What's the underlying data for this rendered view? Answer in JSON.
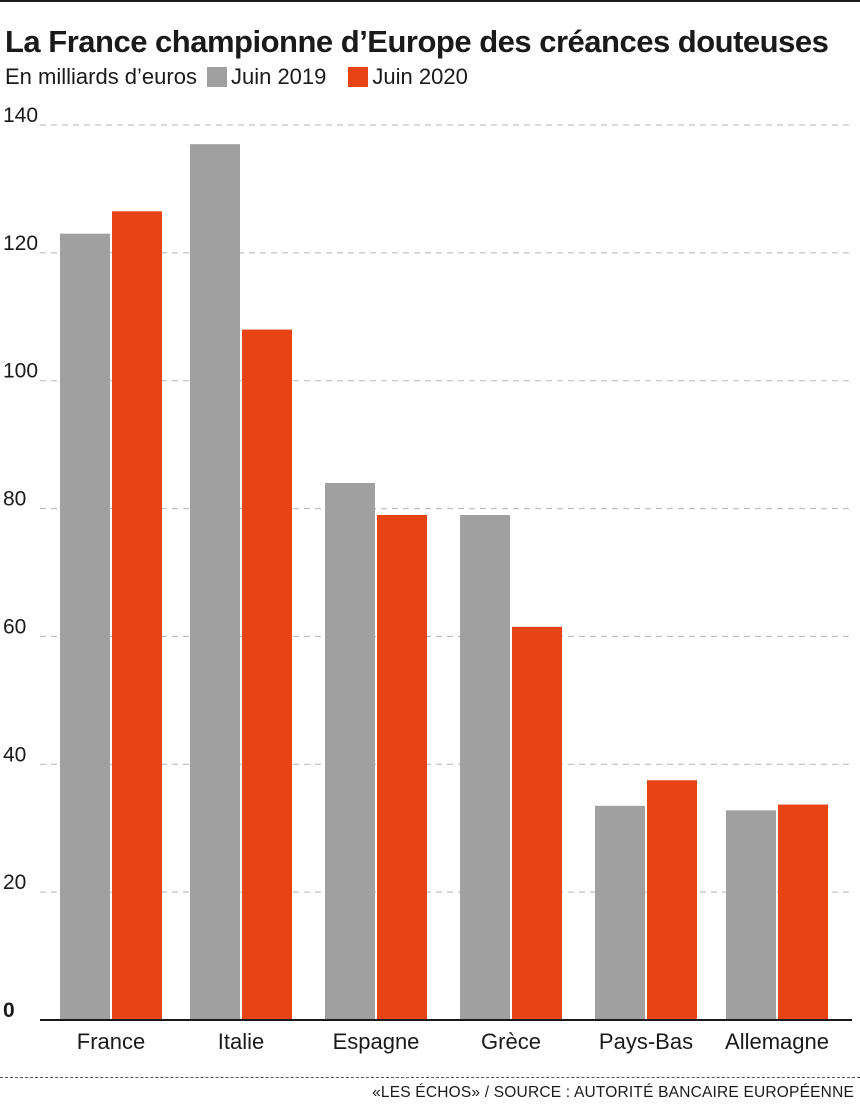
{
  "header": {
    "title": "La France championne d’Europe des créances douteuses",
    "subtitle": "En milliards d’euros"
  },
  "legend": [
    {
      "label": "Juin 2019",
      "color": "#a0a0a0"
    },
    {
      "label": "Juin 2020",
      "color": "#e84314"
    }
  ],
  "footer": {
    "source": "«LES ÉCHOS» / SOURCE : AUTORITÉ BANCAIRE EUROPÉENNE"
  },
  "chart_data": {
    "type": "bar",
    "title": "La France championne d’Europe des créances douteuses",
    "subtitle": "En milliards d’euros",
    "categories": [
      "France",
      "Italie",
      "Espagne",
      "Grèce",
      "Pays-Bas",
      "Allemagne"
    ],
    "series": [
      {
        "name": "Juin 2019",
        "color": "#a0a0a0",
        "values": [
          123,
          137,
          84,
          79,
          33.5,
          32.8
        ]
      },
      {
        "name": "Juin 2020",
        "color": "#e84314",
        "values": [
          126.5,
          108,
          79,
          61.5,
          37.5,
          33.7
        ]
      }
    ],
    "ylim": [
      0,
      140
    ],
    "yticks": [
      0,
      20,
      40,
      60,
      80,
      100,
      120,
      140
    ],
    "grid": true,
    "legend_position": "top-left"
  }
}
